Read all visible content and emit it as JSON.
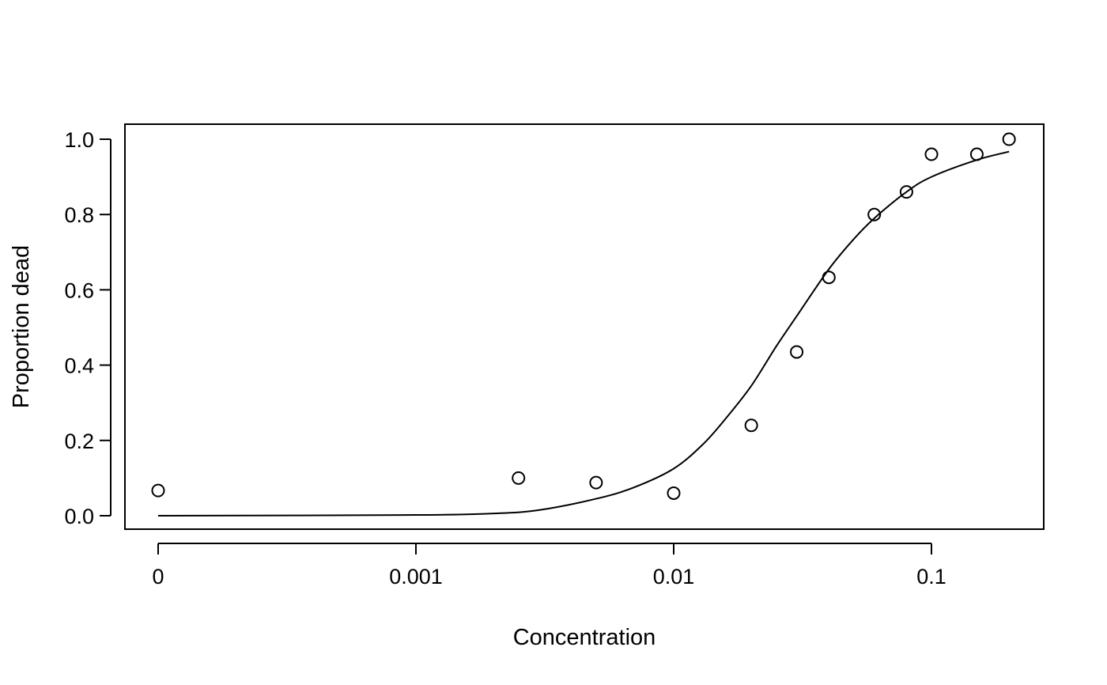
{
  "chart_data": {
    "type": "scatter",
    "title": "",
    "xlabel": "Concentration",
    "ylabel": "Proportion dead",
    "x_scale": "log",
    "x_ticks": [
      {
        "value": 0,
        "label": "0"
      },
      {
        "value": 0.001,
        "label": "0.001"
      },
      {
        "value": 0.01,
        "label": "0.01"
      },
      {
        "value": 0.1,
        "label": "0.1"
      }
    ],
    "y_ticks": [
      {
        "value": 0.0,
        "label": "0.0"
      },
      {
        "value": 0.2,
        "label": "0.2"
      },
      {
        "value": 0.4,
        "label": "0.4"
      },
      {
        "value": 0.6,
        "label": "0.6"
      },
      {
        "value": 0.8,
        "label": "0.8"
      },
      {
        "value": 1.0,
        "label": "1.0"
      }
    ],
    "ylim": [
      -0.04,
      1.04
    ],
    "grid": false,
    "points": [
      {
        "x": 0,
        "y": 0.067
      },
      {
        "x": 0.0025,
        "y": 0.1
      },
      {
        "x": 0.005,
        "y": 0.088
      },
      {
        "x": 0.01,
        "y": 0.06
      },
      {
        "x": 0.02,
        "y": 0.24
      },
      {
        "x": 0.03,
        "y": 0.435
      },
      {
        "x": 0.04,
        "y": 0.633
      },
      {
        "x": 0.06,
        "y": 0.8
      },
      {
        "x": 0.08,
        "y": 0.86
      },
      {
        "x": 0.1,
        "y": 0.96
      },
      {
        "x": 0.15,
        "y": 0.96
      },
      {
        "x": 0.2,
        "y": 1.0
      }
    ],
    "fitted_curve": [
      {
        "x": 0,
        "y": 0.0
      },
      {
        "x": 0.001,
        "y": 0.002
      },
      {
        "x": 0.002,
        "y": 0.006
      },
      {
        "x": 0.003,
        "y": 0.015
      },
      {
        "x": 0.005,
        "y": 0.045
      },
      {
        "x": 0.007,
        "y": 0.075
      },
      {
        "x": 0.01,
        "y": 0.125
      },
      {
        "x": 0.013,
        "y": 0.19
      },
      {
        "x": 0.016,
        "y": 0.26
      },
      {
        "x": 0.02,
        "y": 0.345
      },
      {
        "x": 0.025,
        "y": 0.45
      },
      {
        "x": 0.03,
        "y": 0.53
      },
      {
        "x": 0.04,
        "y": 0.655
      },
      {
        "x": 0.05,
        "y": 0.735
      },
      {
        "x": 0.06,
        "y": 0.79
      },
      {
        "x": 0.08,
        "y": 0.86
      },
      {
        "x": 0.1,
        "y": 0.9
      },
      {
        "x": 0.15,
        "y": 0.945
      },
      {
        "x": 0.2,
        "y": 0.967
      }
    ]
  }
}
